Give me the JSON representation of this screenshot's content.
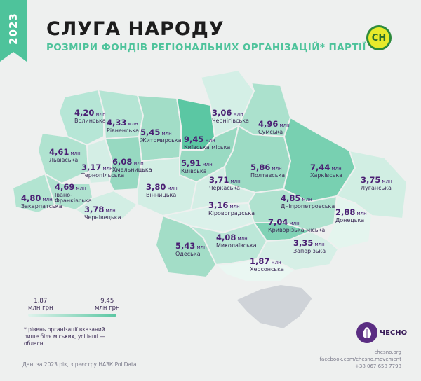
{
  "header": {
    "year": "2023",
    "title": "СЛУГА НАРОДУ",
    "subtitle": "РОЗМІРИ ФОНДІВ РЕГІОНАЛЬНИХ ОРГАНІЗАЦІЙ* ПАРТІЇ",
    "party_logo_text": "СН"
  },
  "colors": {
    "accent": "#4ec39b",
    "label": "#4a1f73",
    "min_fill": "#dff3ec",
    "max_fill": "#5bc7a3",
    "crimea": "#cfd3d8",
    "background": "#eef0ef"
  },
  "unit": "млн",
  "regions": [
    {
      "name": "Волинська",
      "value": "4,20"
    },
    {
      "name": "Рівненська",
      "value": "4,33"
    },
    {
      "name": "Житомирська",
      "value": "5,45"
    },
    {
      "name": "Київська міська",
      "value": "9,45"
    },
    {
      "name": "Чернігівська",
      "value": "3,06"
    },
    {
      "name": "Сумська",
      "value": "4,96"
    },
    {
      "name": "Львівська",
      "value": "4,61"
    },
    {
      "name": "Тернопільська",
      "value": "3,17"
    },
    {
      "name": "Хмельницька",
      "value": "6,08"
    },
    {
      "name": "Київська",
      "value": "5,91"
    },
    {
      "name": "Полтавська",
      "value": "5,86"
    },
    {
      "name": "Харківська",
      "value": "7,44"
    },
    {
      "name": "Луганська",
      "value": "3,75"
    },
    {
      "name": "Івано-Франківська",
      "value": "4,69"
    },
    {
      "name": "Вінницька",
      "value": "3,80"
    },
    {
      "name": "Черкаська",
      "value": "3,71"
    },
    {
      "name": "Закарпатська",
      "value": "4,80"
    },
    {
      "name": "Чернівецька",
      "value": "3,78"
    },
    {
      "name": "Кіровоградська",
      "value": "3,16"
    },
    {
      "name": "Дніпропетровська",
      "value": "4,85"
    },
    {
      "name": "Донецька",
      "value": "2,88"
    },
    {
      "name": "Криворізька міська",
      "value": "7,04"
    },
    {
      "name": "Одеська",
      "value": "5,43"
    },
    {
      "name": "Миколаївська",
      "value": "4,08"
    },
    {
      "name": "Запорізька",
      "value": "3,35"
    },
    {
      "name": "Херсонська",
      "value": "1,87"
    }
  ],
  "legend": {
    "min_value": "1,87",
    "max_value": "9,45",
    "unit_label": "млн грн",
    "note": "* рівень організації вказаний лише біля міських, усі інші — обласні"
  },
  "footer": {
    "source": "Дані за 2023 рік, з реєстру НАЗК PoliData.",
    "brand": "ЧЕСНО",
    "site": "chesno.org",
    "facebook": "facebook.com/chesno.movement",
    "phone": "+38 067 658 7798"
  }
}
